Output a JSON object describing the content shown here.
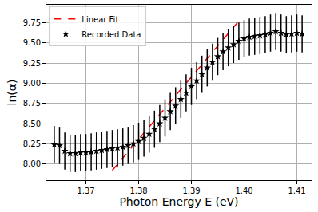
{
  "chart_data": {
    "type": "scatter",
    "x_label": "Photon Energy E (eV)",
    "y_label": "ln(α)",
    "xlim": [
      1.3625,
      1.4128
    ],
    "ylim": [
      7.8,
      9.97
    ],
    "xticks": [
      1.37,
      1.38,
      1.39,
      {
        "value": 1.4,
        "label": "1.40"
      },
      1.41
    ],
    "yticks": [
      {
        "value": 8,
        "label": "8.00"
      },
      8.25,
      {
        "value": 8.5,
        "label": "8.50"
      },
      8.75,
      {
        "value": 9,
        "label": "9.00"
      },
      9.25,
      {
        "value": 9.5,
        "label": "9.50"
      },
      9.75
    ],
    "grid": true,
    "legend": "upper left",
    "series": [
      {
        "name": "Linear Fit",
        "type": "line",
        "color": "#ff0000",
        "line_style": "dashed",
        "x": [
          1.375,
          1.399
        ],
        "values": [
          7.92,
          9.77
        ]
      },
      {
        "name": "Recorded Data",
        "type": "scatter",
        "color": "#000000",
        "marker": "star",
        "error": 0.23,
        "x": [
          1.364,
          1.365,
          1.366,
          1.367,
          1.368,
          1.369,
          1.37,
          1.371,
          1.372,
          1.373,
          1.374,
          1.375,
          1.376,
          1.377,
          1.378,
          1.379,
          1.38,
          1.381,
          1.382,
          1.383,
          1.384,
          1.385,
          1.386,
          1.387,
          1.388,
          1.389,
          1.39,
          1.391,
          1.392,
          1.393,
          1.394,
          1.395,
          1.396,
          1.397,
          1.398,
          1.399,
          1.4,
          1.401,
          1.402,
          1.403,
          1.404,
          1.405,
          1.406,
          1.407,
          1.408,
          1.409,
          1.41,
          1.411
        ],
        "values": [
          8.24,
          8.23,
          8.16,
          8.13,
          8.13,
          8.14,
          8.14,
          8.15,
          8.16,
          8.17,
          8.18,
          8.19,
          8.2,
          8.21,
          8.23,
          8.25,
          8.28,
          8.32,
          8.37,
          8.43,
          8.5,
          8.57,
          8.65,
          8.72,
          8.8,
          8.88,
          8.96,
          9.03,
          9.11,
          9.19,
          9.26,
          9.33,
          9.39,
          9.44,
          9.48,
          9.52,
          9.55,
          9.57,
          9.58,
          9.59,
          9.6,
          9.62,
          9.64,
          9.62,
          9.6,
          9.61,
          9.62,
          9.61
        ]
      }
    ]
  }
}
